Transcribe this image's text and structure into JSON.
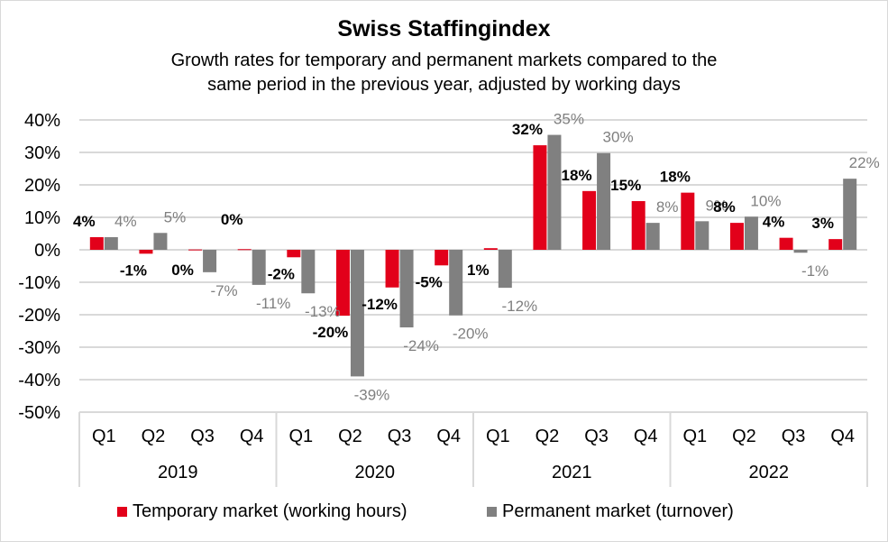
{
  "chart_data": {
    "type": "bar",
    "title": "Swiss Staffingindex",
    "subtitle_lines": [
      "Growth rates for temporary and permanent markets compared to the",
      "same period in the previous year, adjusted by working days"
    ],
    "xlabel": "",
    "ylabel": "",
    "ylim": [
      -50,
      40
    ],
    "yticks": [
      40,
      30,
      20,
      10,
      0,
      -10,
      -20,
      -30,
      -40,
      -50
    ],
    "ytick_labels": [
      "40%",
      "30%",
      "20%",
      "10%",
      "0%",
      "-10%",
      "-20%",
      "-30%",
      "-40%",
      "-50%"
    ],
    "grid": true,
    "legend_position": "bottom",
    "categories": [
      "Q1",
      "Q2",
      "Q3",
      "Q4",
      "Q1",
      "Q2",
      "Q3",
      "Q4",
      "Q1",
      "Q2",
      "Q3",
      "Q4",
      "Q1",
      "Q2",
      "Q3",
      "Q4"
    ],
    "groups": [
      {
        "label": "2019",
        "span": 4
      },
      {
        "label": "2020",
        "span": 4
      },
      {
        "label": "2021",
        "span": 4
      },
      {
        "label": "2022",
        "span": 4
      }
    ],
    "series": [
      {
        "name": "Temporary market (working hours)",
        "color": "#e2001a",
        "values": [
          3.9,
          -1.2,
          0.1,
          0.2,
          -2.3,
          -20.3,
          -11.6,
          -4.8,
          0.5,
          32.2,
          18.1,
          15.0,
          17.6,
          8.3,
          3.7,
          3.3
        ],
        "labels": [
          "4%",
          "-1%",
          "0%",
          "0%",
          "-2%",
          "-20%",
          "-12%",
          "-5%",
          "1%",
          "32%",
          "18%",
          "15%",
          "18%",
          "8%",
          "4%",
          "3%"
        ]
      },
      {
        "name": "Permanent market (turnover)",
        "color": "#808080",
        "values": [
          3.9,
          5.2,
          -6.9,
          -10.8,
          -13.4,
          -39.0,
          -23.9,
          -20.2,
          -11.7,
          35.4,
          29.8,
          8.3,
          8.8,
          10.2,
          -0.9,
          21.9
        ],
        "labels": [
          "4%",
          "5%",
          "-7%",
          "-11%",
          "-13%",
          "-39%",
          "-24%",
          "-20%",
          "-12%",
          "35%",
          "30%",
          "8%",
          "9%",
          "10%",
          "-1%",
          "22%"
        ]
      }
    ]
  }
}
